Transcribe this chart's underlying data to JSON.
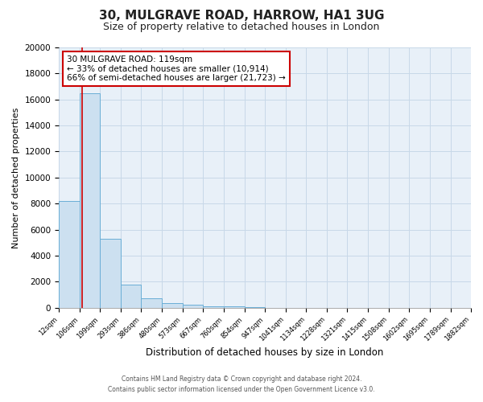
{
  "title": "30, MULGRAVE ROAD, HARROW, HA1 3UG",
  "subtitle": "Size of property relative to detached houses in London",
  "xlabel": "Distribution of detached houses by size in London",
  "ylabel": "Number of detached properties",
  "bin_edges": [
    12,
    106,
    199,
    293,
    386,
    480,
    573,
    667,
    760,
    854,
    947,
    1041,
    1134,
    1228,
    1321,
    1415,
    1508,
    1602,
    1695,
    1789,
    1882
  ],
  "bar_heights": [
    8200,
    16500,
    5300,
    1750,
    750,
    350,
    200,
    100,
    100,
    50,
    0,
    0,
    0,
    0,
    0,
    0,
    0,
    0,
    0,
    0
  ],
  "bar_color": "#cce0f0",
  "bar_edge_color": "#6aaed6",
  "red_line_x": 119,
  "annotation_title": "30 MULGRAVE ROAD: 119sqm",
  "annotation_line1": "← 33% of detached houses are smaller (10,914)",
  "annotation_line2": "66% of semi-detached houses are larger (21,723) →",
  "annotation_box_facecolor": "#ffffff",
  "annotation_box_edgecolor": "#cc0000",
  "red_line_color": "#cc0000",
  "grid_color": "#c8d8e8",
  "plot_bg_color": "#e8f0f8",
  "fig_bg_color": "#ffffff",
  "ylim": [
    0,
    20000
  ],
  "yticks": [
    0,
    2000,
    4000,
    6000,
    8000,
    10000,
    12000,
    14000,
    16000,
    18000,
    20000
  ],
  "footer_line1": "Contains HM Land Registry data © Crown copyright and database right 2024.",
  "footer_line2": "Contains public sector information licensed under the Open Government Licence v3.0."
}
